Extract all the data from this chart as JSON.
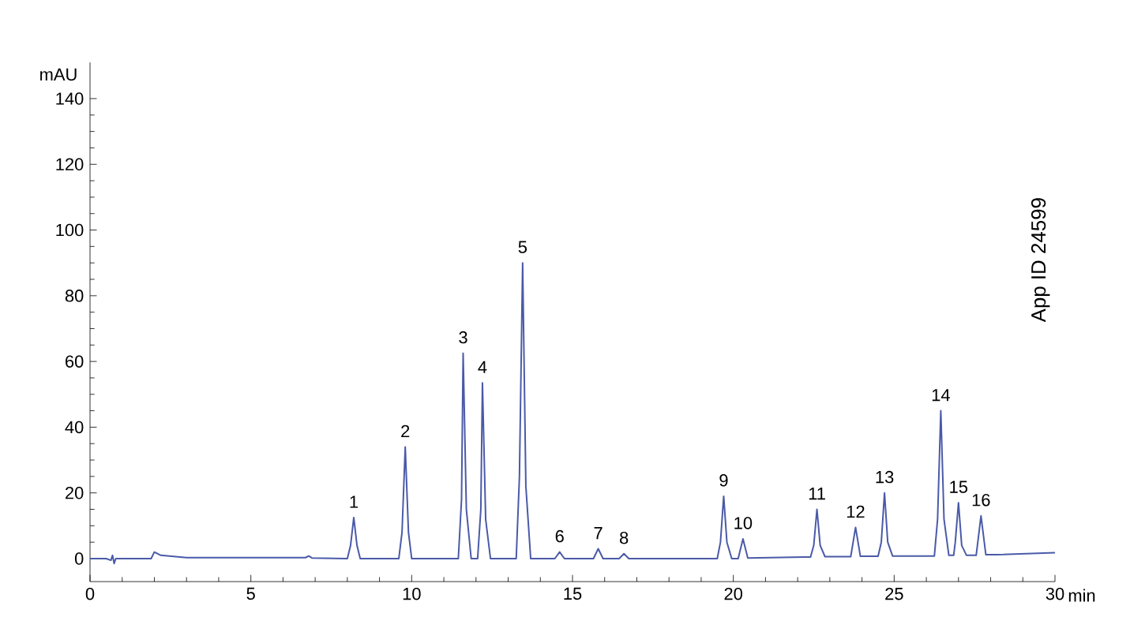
{
  "chart_data": {
    "type": "line",
    "xlabel": "min",
    "ylabel": "mAU",
    "x": [
      0,
      0.5,
      0.65,
      0.7,
      0.75,
      0.8,
      1.9,
      2.0,
      2.2,
      3,
      6.7,
      6.8,
      6.9,
      8.0,
      8.1,
      8.2,
      8.3,
      8.4,
      9.6,
      9.7,
      9.8,
      9.9,
      10.0,
      11.45,
      11.55,
      11.6,
      11.7,
      11.85,
      12.05,
      12.15,
      12.2,
      12.3,
      12.45,
      13.25,
      13.35,
      13.45,
      13.55,
      13.7,
      14.45,
      14.6,
      14.75,
      15.65,
      15.8,
      15.95,
      16.45,
      16.6,
      16.75,
      19.5,
      19.6,
      19.7,
      19.8,
      19.95,
      20.15,
      20.3,
      20.45,
      22.4,
      22.5,
      22.6,
      22.7,
      22.85,
      23.65,
      23.8,
      23.95,
      24.5,
      24.6,
      24.7,
      24.8,
      24.95,
      26.25,
      26.35,
      26.45,
      26.55,
      26.7,
      26.85,
      26.9,
      27.0,
      27.1,
      27.25,
      27.55,
      27.7,
      27.85,
      28.2,
      30
    ],
    "values": [
      0,
      0,
      -0.5,
      1,
      -1.5,
      0,
      0,
      2,
      1,
      0.3,
      0.3,
      0.8,
      0.2,
      0,
      4,
      12.5,
      4,
      0,
      0,
      8,
      34,
      8,
      0,
      0,
      18,
      62.5,
      15,
      0,
      0,
      15,
      53.5,
      12,
      0,
      0,
      25,
      90,
      22,
      0,
      0,
      2,
      0,
      0,
      3,
      0,
      0,
      1.5,
      0,
      0,
      5,
      19,
      5,
      0,
      0,
      6,
      0.2,
      0.5,
      4,
      15,
      4,
      0.6,
      0.6,
      9.5,
      0.7,
      0.7,
      5,
      20,
      5,
      0.8,
      0.8,
      12,
      45,
      12,
      1,
      1,
      5,
      17,
      4,
      1,
      1,
      13,
      1.2,
      1.2,
      1.8
    ],
    "color": "#4a5aa8",
    "xlim": [
      0,
      30
    ],
    "ylim": [
      -7,
      151
    ],
    "xticks": [
      0,
      5,
      10,
      15,
      20,
      25,
      30
    ],
    "yticks": [
      0,
      20,
      40,
      60,
      80,
      100,
      120,
      140
    ],
    "grid": false,
    "marker": "none",
    "line_style": "solid",
    "annotations": [
      {
        "text": "1",
        "x": 8.2,
        "y": 12.5
      },
      {
        "text": "2",
        "x": 9.8,
        "y": 34
      },
      {
        "text": "3",
        "x": 11.6,
        "y": 62.5
      },
      {
        "text": "4",
        "x": 12.2,
        "y": 53.5
      },
      {
        "text": "5",
        "x": 13.45,
        "y": 90
      },
      {
        "text": "6",
        "x": 14.6,
        "y": 2
      },
      {
        "text": "7",
        "x": 15.8,
        "y": 3
      },
      {
        "text": "8",
        "x": 16.6,
        "y": 1.5
      },
      {
        "text": "9",
        "x": 19.7,
        "y": 19
      },
      {
        "text": "10",
        "x": 20.3,
        "y": 6
      },
      {
        "text": "11",
        "x": 22.6,
        "y": 15
      },
      {
        "text": "12",
        "x": 23.8,
        "y": 9.5
      },
      {
        "text": "13",
        "x": 24.7,
        "y": 20
      },
      {
        "text": "14",
        "x": 26.45,
        "y": 45
      },
      {
        "text": "15",
        "x": 27.0,
        "y": 17
      },
      {
        "text": "16",
        "x": 27.7,
        "y": 13
      },
      "App ID 24599"
    ]
  }
}
